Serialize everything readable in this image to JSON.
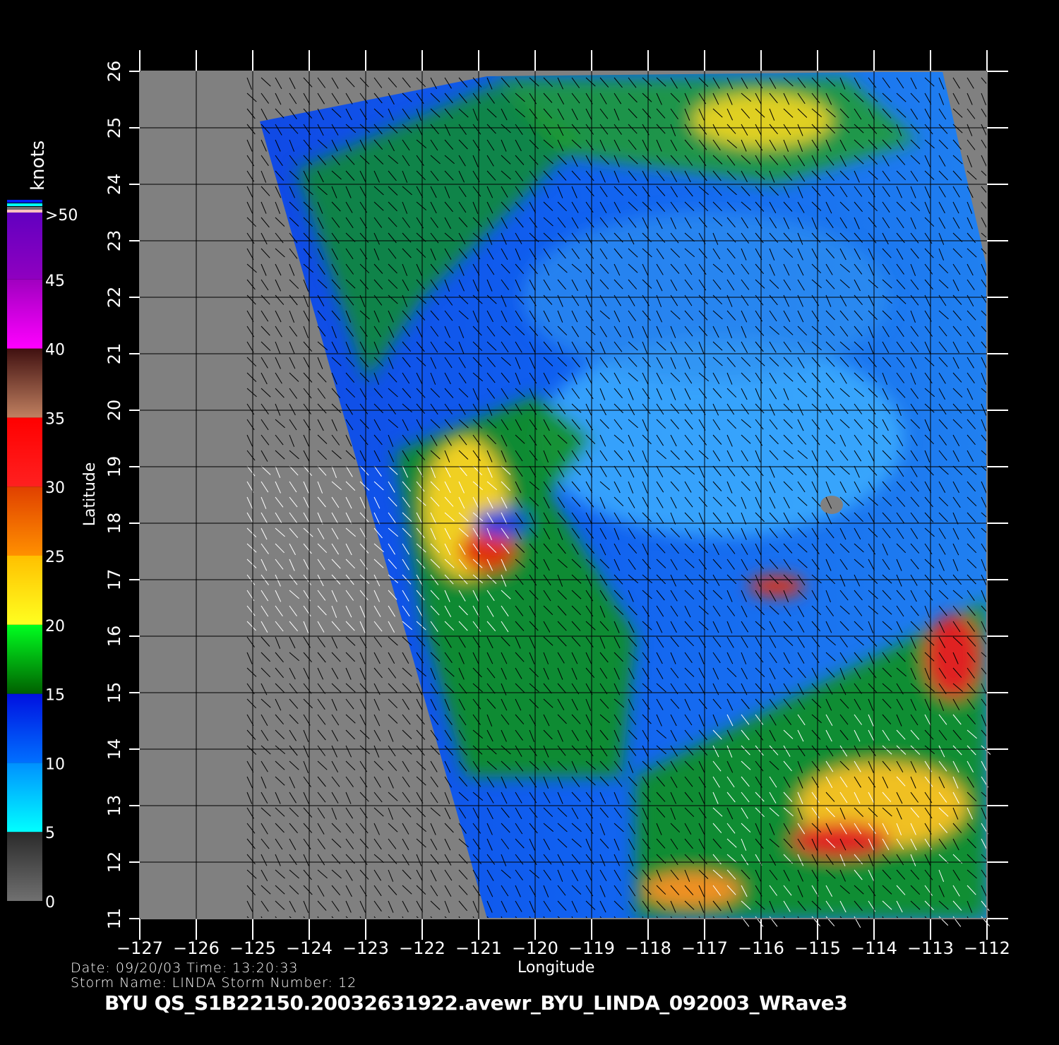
{
  "map": {
    "type": "scatterometer wind speed map",
    "xlabel": "Longitude",
    "ylabel": "Latitude",
    "lon_range": [
      -127,
      -112
    ],
    "lat_range": [
      11,
      26
    ],
    "lon_ticks": [
      "−127",
      "−126",
      "−125",
      "−124",
      "−123",
      "−122",
      "−121",
      "−120",
      "−119",
      "−118",
      "−117",
      "−116",
      "−115",
      "−114",
      "−113",
      "−112"
    ],
    "lat_ticks": [
      "11",
      "12",
      "13",
      "14",
      "15",
      "16",
      "17",
      "18",
      "19",
      "20",
      "21",
      "22",
      "23",
      "24",
      "25",
      "26"
    ],
    "grid": true,
    "no_data_color": "#808080"
  },
  "colorbar": {
    "unit": "knots",
    "labels": [
      "0",
      "5",
      "10",
      "15",
      "20",
      "25",
      "30",
      "35",
      "40",
      "45",
      ">50"
    ],
    "segments": [
      {
        "from": 0,
        "to": 5,
        "colors": [
          "#707070",
          "#2a2a2a"
        ]
      },
      {
        "from": 5,
        "to": 10,
        "colors": [
          "#00ffff",
          "#0090ff"
        ]
      },
      {
        "from": 10,
        "to": 15,
        "colors": [
          "#0070ff",
          "#0010e0"
        ]
      },
      {
        "from": 15,
        "to": 20,
        "colors": [
          "#006000",
          "#00ff20"
        ]
      },
      {
        "from": 20,
        "to": 25,
        "colors": [
          "#ffff20",
          "#ffc000"
        ]
      },
      {
        "from": 25,
        "to": 30,
        "colors": [
          "#ff9000",
          "#e04000"
        ]
      },
      {
        "from": 30,
        "to": 35,
        "colors": [
          "#ff2020",
          "#ff0000"
        ]
      },
      {
        "from": 35,
        "to": 40,
        "colors": [
          "#c08060",
          "#401010"
        ]
      },
      {
        "from": 40,
        "to": 45,
        "colors": [
          "#ff00ff",
          "#a000c0"
        ]
      },
      {
        "from": 45,
        "to": 50,
        "colors": [
          "#9000c0",
          "#6000c0"
        ]
      }
    ]
  },
  "info": {
    "date_line": "Date: 09/20/03   Time: 13:20:33",
    "storm_line": "Storm  Name: LINDA   Storm  Number: 12",
    "title": "BYU  QS_S1B22150.20032631922.avewr_BYU_LINDA_092003_WRave3"
  }
}
